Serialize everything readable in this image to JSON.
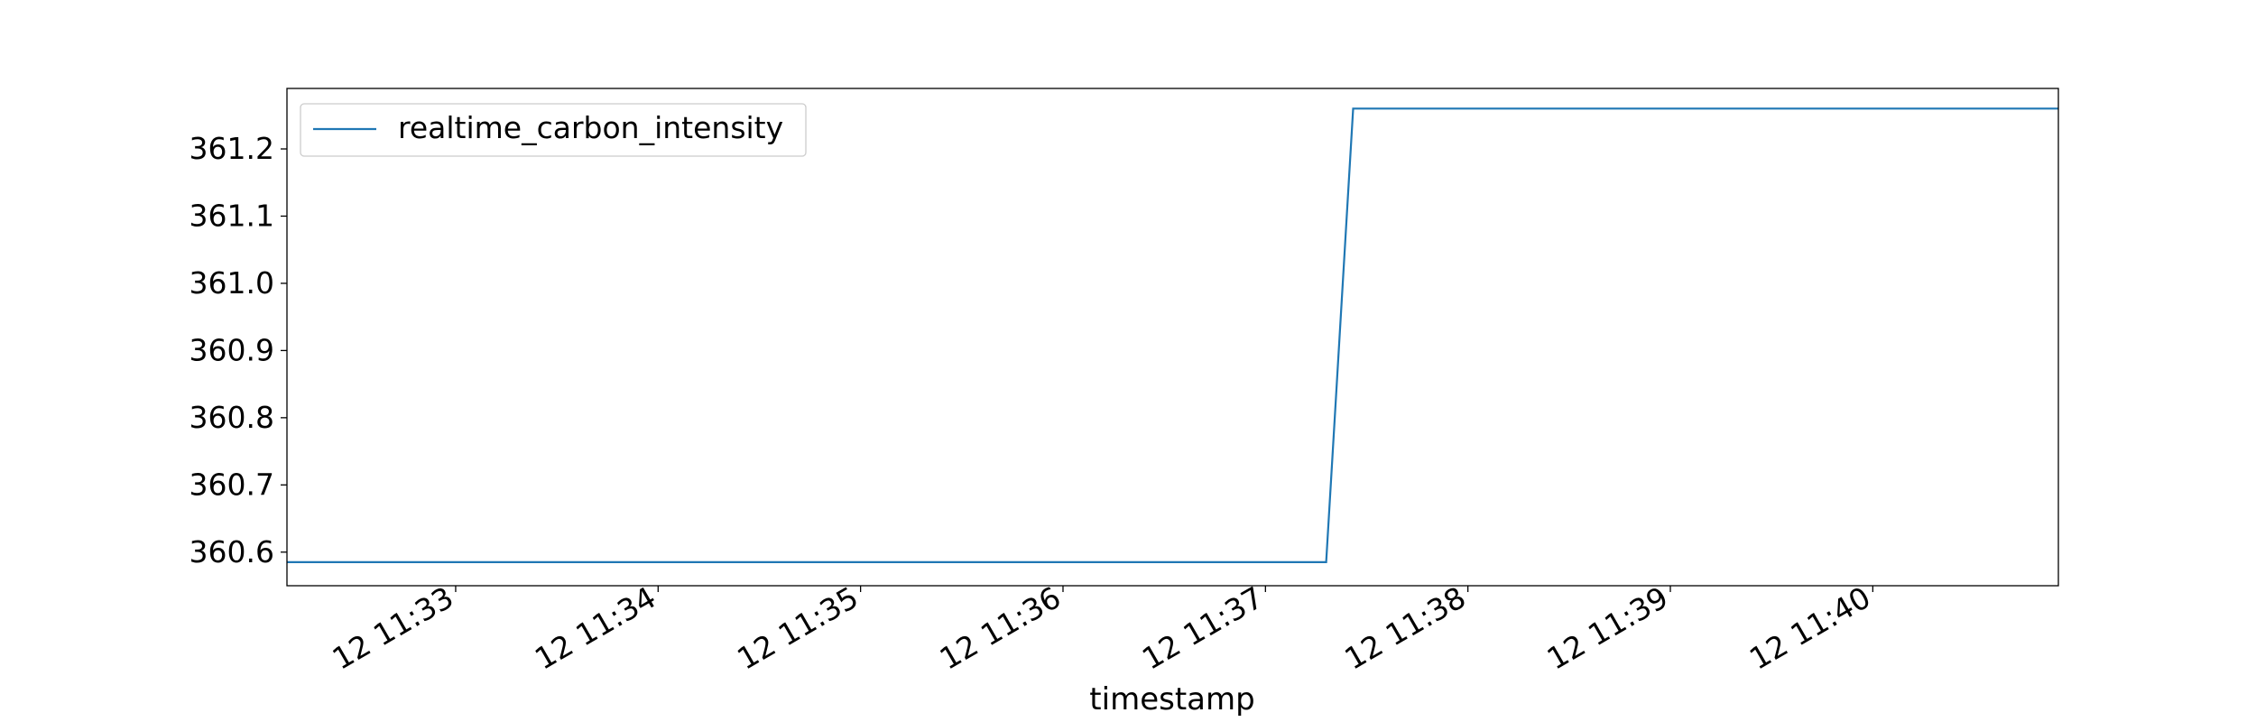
{
  "chart_data": {
    "type": "line",
    "title": "",
    "xlabel": "timestamp",
    "ylabel": "",
    "x_ticks": [
      "12 11:33",
      "12 11:34",
      "12 11:35",
      "12 11:36",
      "12 11:37",
      "12 11:38",
      "12 11:39",
      "12 11:40"
    ],
    "y_ticks": [
      "360.6",
      "360.7",
      "360.8",
      "360.9",
      "361.0",
      "361.1",
      "361.2"
    ],
    "xlim": [
      "2024-06-12 11:32:10",
      "2024-06-12 11:40:55"
    ],
    "ylim": [
      360.55,
      361.29
    ],
    "grid": false,
    "legend_position": "upper-left",
    "series": [
      {
        "name": "realtime_carbon_intensity",
        "color": "#1f77b4",
        "points": [
          {
            "x": "2024-06-12 11:32:10",
            "y": 360.585
          },
          {
            "x": "2024-06-12 11:37:18",
            "y": 360.585
          },
          {
            "x": "2024-06-12 11:37:26",
            "y": 361.26
          },
          {
            "x": "2024-06-12 11:40:55",
            "y": 361.26
          }
        ]
      }
    ]
  }
}
